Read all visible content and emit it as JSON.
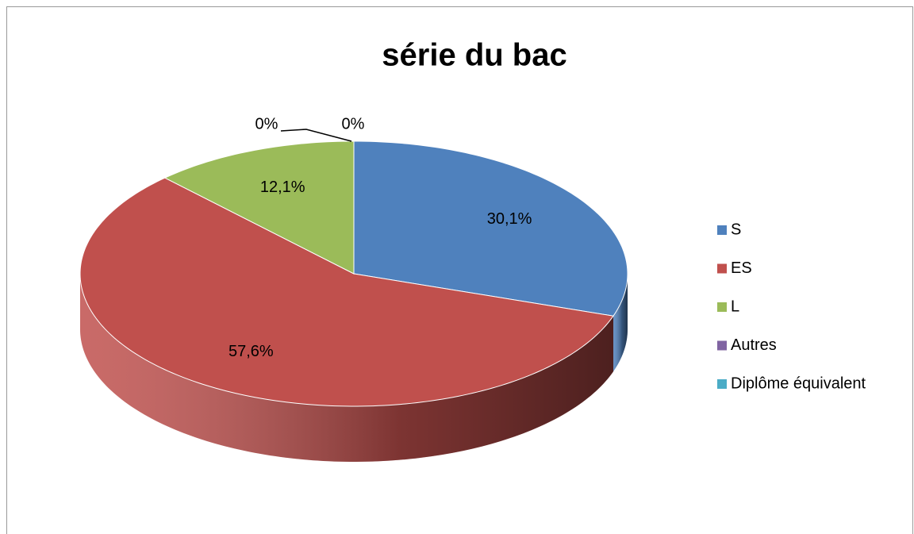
{
  "chart_data": {
    "type": "pie",
    "title": "série du bac",
    "categories": [
      "S",
      "ES",
      "L",
      "Autres",
      "Diplôme équivalent"
    ],
    "values": [
      30.1,
      57.6,
      12.1,
      0,
      0
    ],
    "value_labels": [
      "30,1%",
      "57,6%",
      "12,1%",
      "0%",
      "0%"
    ],
    "colors": [
      "#4f81bd",
      "#c0504d",
      "#9bbb59",
      "#8064a2",
      "#4bacc6"
    ],
    "legend": "right"
  }
}
